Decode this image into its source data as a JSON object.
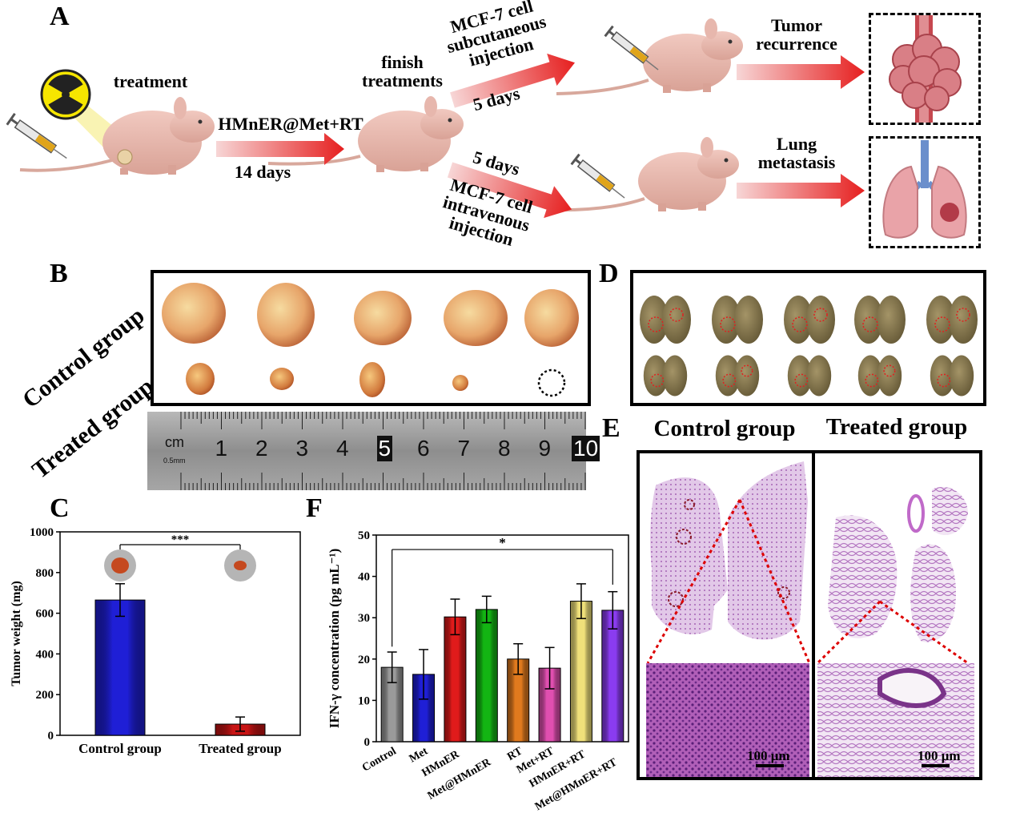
{
  "panels": {
    "A": "A",
    "B": "B",
    "C": "C",
    "D": "D",
    "E": "E",
    "F": "F"
  },
  "schematic": {
    "treatment": "treatment",
    "drug_rt": "HMnER@Met+RT",
    "days14": "14 days",
    "finish": "finish\ntreatments",
    "upper_arrow": "MCF-7 cell\nsubcutaneous\ninjection",
    "upper_days": "5 days",
    "lower_days": "5 days",
    "lower_arrow": "MCF-7 cell\nintravenous\ninjection",
    "tumor_recurrence": "Tumor\nrecurrence",
    "lung_metastasis": "Lung\nmetastasis"
  },
  "panel_b": {
    "control_label": "Control group",
    "treated_label": "Treated group",
    "ruler_unit": "cm",
    "ruler_sub": "0.5mm",
    "ruler_numbers": [
      "1",
      "2",
      "3",
      "4",
      "5",
      "6",
      "7",
      "8",
      "9",
      "10"
    ]
  },
  "panel_e": {
    "control_title": "Control group",
    "treated_title": "Treated group",
    "scale_bar": "100 μm"
  },
  "chart_data": [
    {
      "id": "C",
      "type": "bar",
      "categories": [
        "Control group",
        "Treated group"
      ],
      "values": [
        665,
        55
      ],
      "errors": [
        80,
        35
      ],
      "colors": [
        "#1f1fd6",
        "#c81414"
      ],
      "ylabel": "Tumor weight (mg)",
      "ylim": [
        0,
        1000
      ],
      "yticks": [
        0,
        200,
        400,
        600,
        800,
        1000
      ],
      "significance": "***"
    },
    {
      "id": "F",
      "type": "bar",
      "categories": [
        "Control",
        "Met",
        "HMnER",
        "Met@HMnER",
        "RT",
        "Met+RT",
        "HMnER+RT",
        "Met@HMnER+RT"
      ],
      "values": [
        18,
        16.3,
        30.2,
        32,
        20,
        17.8,
        34,
        31.8
      ],
      "errors": [
        3.7,
        6,
        4.3,
        3.2,
        3.7,
        5,
        4.2,
        4.5
      ],
      "colors": [
        "#9a9a9a",
        "#1f1fd6",
        "#e01b1b",
        "#13b513",
        "#e07a1e",
        "#e04fb0",
        "#efe07a",
        "#8a3cf0"
      ],
      "ylabel": "IFN-γ concentration (pg mL⁻¹)",
      "ylim": [
        0,
        50
      ],
      "yticks": [
        0,
        10,
        20,
        30,
        40,
        50
      ],
      "significance": "*"
    }
  ]
}
